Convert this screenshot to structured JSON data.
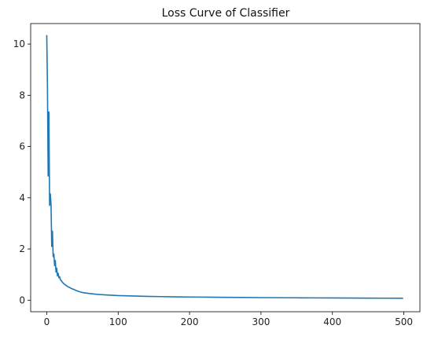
{
  "chart_data": {
    "type": "line",
    "title": "Loss Curve of Classifier",
    "xlabel": "",
    "ylabel": "",
    "xlim": [
      -22.5,
      522.5
    ],
    "ylim": [
      -0.45,
      10.8
    ],
    "xticks": [
      0,
      100,
      200,
      300,
      400,
      500
    ],
    "yticks": [
      0,
      2,
      4,
      6,
      8,
      10
    ],
    "grid": false,
    "legend": "none",
    "series": [
      {
        "color": "#1f77b4",
        "x": [
          0,
          1,
          2,
          3,
          4,
          5,
          6,
          7,
          8,
          9,
          10,
          11,
          12,
          13,
          14,
          15,
          16,
          17,
          18,
          19,
          20,
          22,
          24,
          26,
          28,
          30,
          32,
          35,
          38,
          41,
          45,
          50,
          55,
          60,
          70,
          80,
          90,
          100,
          120,
          140,
          160,
          180,
          200,
          225,
          250,
          275,
          300,
          325,
          350,
          375,
          400,
          425,
          450,
          475,
          499
        ],
        "y": [
          10.35,
          8.4,
          4.85,
          7.35,
          3.7,
          4.15,
          3.75,
          2.1,
          2.7,
          1.7,
          1.8,
          1.35,
          1.55,
          1.1,
          1.25,
          0.95,
          1.05,
          0.88,
          0.92,
          0.8,
          0.78,
          0.7,
          0.64,
          0.6,
          0.56,
          0.52,
          0.5,
          0.45,
          0.42,
          0.38,
          0.34,
          0.3,
          0.28,
          0.26,
          0.23,
          0.21,
          0.195,
          0.18,
          0.165,
          0.15,
          0.14,
          0.13,
          0.125,
          0.118,
          0.112,
          0.107,
          0.102,
          0.098,
          0.094,
          0.09,
          0.087,
          0.084,
          0.081,
          0.079,
          0.077
        ]
      }
    ]
  }
}
